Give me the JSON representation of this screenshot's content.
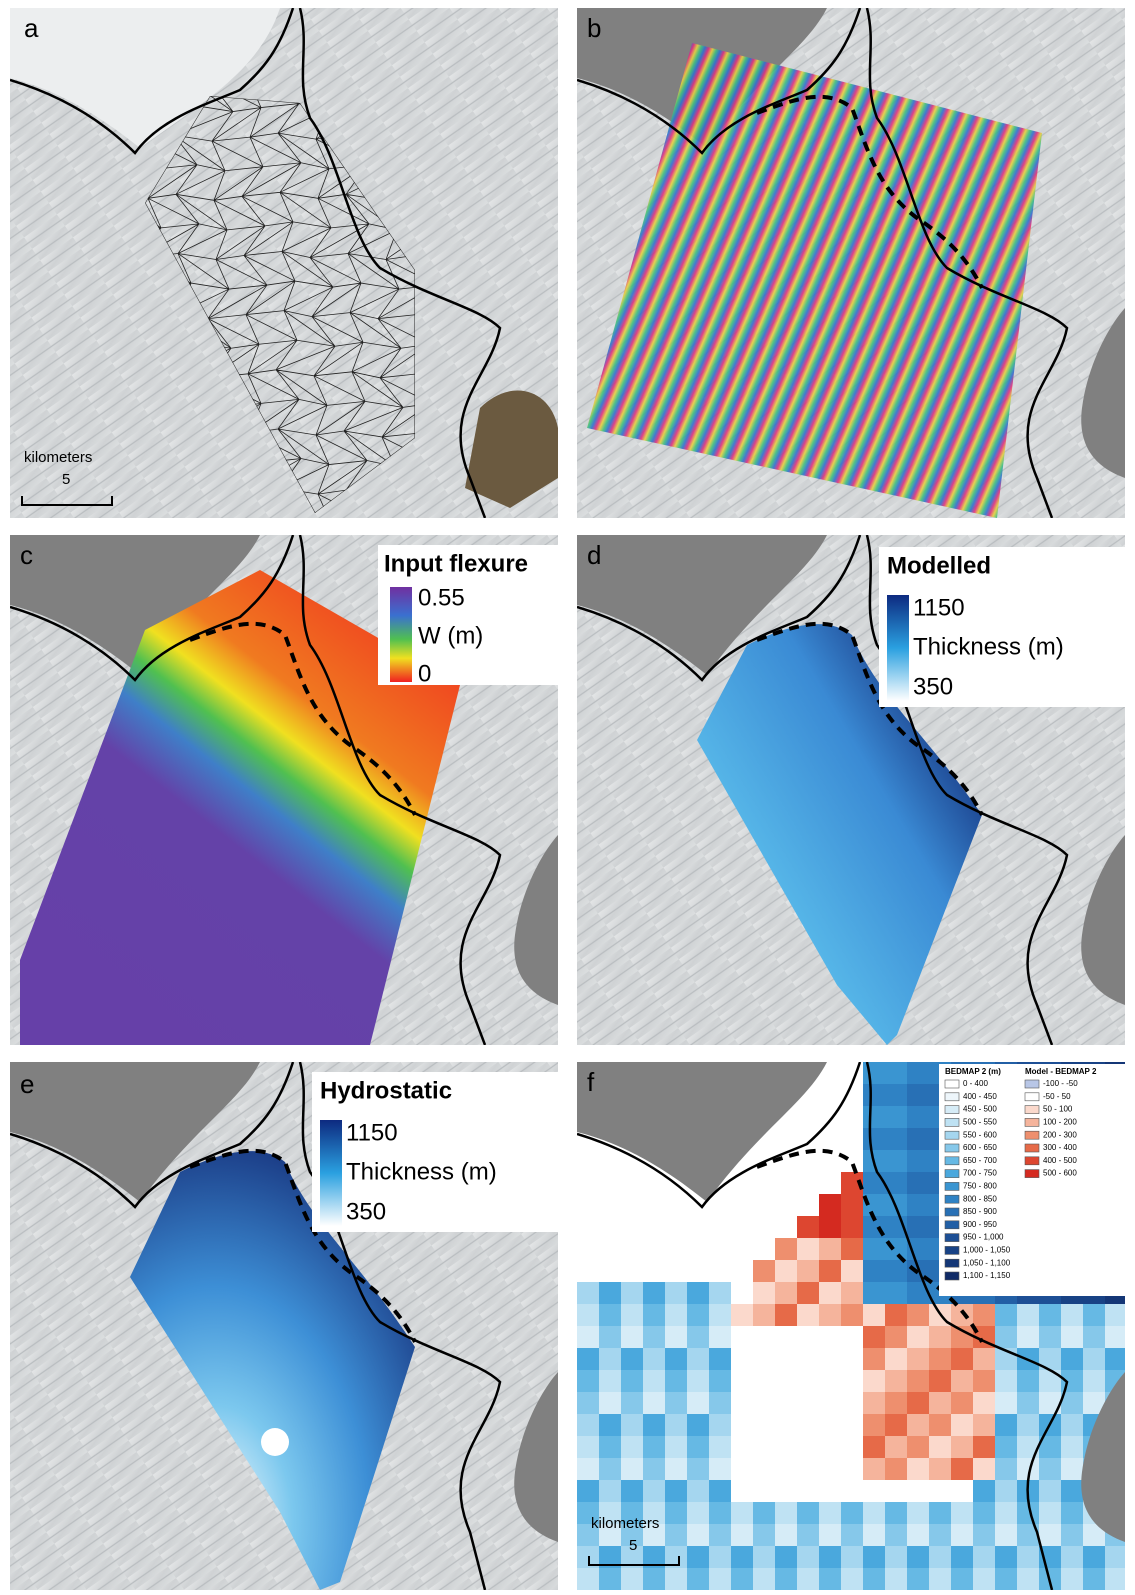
{
  "panels": [
    {
      "label": "a",
      "scale_bar": {
        "title": "kilometers",
        "value": 5
      }
    },
    {
      "label": "b"
    },
    {
      "label": "c",
      "legend": {
        "title": "Input flexure",
        "max": 0.55,
        "unit": "W (m)",
        "min": 0
      }
    },
    {
      "label": "d",
      "legend": {
        "title": "Modelled",
        "max": 1150,
        "unit": "Thickness (m)",
        "min": 350
      }
    },
    {
      "label": "e",
      "legend": {
        "title": "Hydrostatic",
        "max": 1150,
        "unit": "Thickness (m)",
        "min": 350
      }
    },
    {
      "label": "f",
      "scale_bar": {
        "title": "kilometers",
        "value": 5
      },
      "legend": {
        "columns": [
          {
            "title": "BEDMAP 2 (m)",
            "classes": [
              {
                "label": "0 - 400",
                "color": "#ffffff"
              },
              {
                "label": "400 - 450",
                "color": "#eef6fb"
              },
              {
                "label": "450 - 500",
                "color": "#d6ecf7"
              },
              {
                "label": "500 - 550",
                "color": "#bfe2f3"
              },
              {
                "label": "550 - 600",
                "color": "#a5d6ef"
              },
              {
                "label": "600 - 650",
                "color": "#86c8ea"
              },
              {
                "label": "650 - 700",
                "color": "#66b9e4"
              },
              {
                "label": "700 - 750",
                "color": "#4aa8dd"
              },
              {
                "label": "750 - 800",
                "color": "#3a95d1"
              },
              {
                "label": "800 - 850",
                "color": "#2f82c4"
              },
              {
                "label": "850 - 900",
                "color": "#2870b5"
              },
              {
                "label": "900 - 950",
                "color": "#225fa5"
              },
              {
                "label": "950 - 1,000",
                "color": "#1d4f95"
              },
              {
                "label": "1,000 - 1,050",
                "color": "#184285"
              },
              {
                "label": "1,050 - 1,100",
                "color": "#143676"
              },
              {
                "label": "1,100 - 1,150",
                "color": "#102a66"
              }
            ]
          },
          {
            "title": "Model - BEDMAP 2",
            "classes": [
              {
                "label": "-100 - -50",
                "color": "#b8c6e6"
              },
              {
                "label": "-50 - 50",
                "color": "#ffffff"
              },
              {
                "label": "50 - 100",
                "color": "#fbd9cc"
              },
              {
                "label": "100 - 200",
                "color": "#f5b49c"
              },
              {
                "label": "200 - 300",
                "color": "#ee8f6e"
              },
              {
                "label": "300 - 400",
                "color": "#e66a48"
              },
              {
                "label": "400 - 500",
                "color": "#dd4630"
              },
              {
                "label": "500 - 600",
                "color": "#d42a20"
              }
            ]
          }
        ]
      }
    }
  ]
}
